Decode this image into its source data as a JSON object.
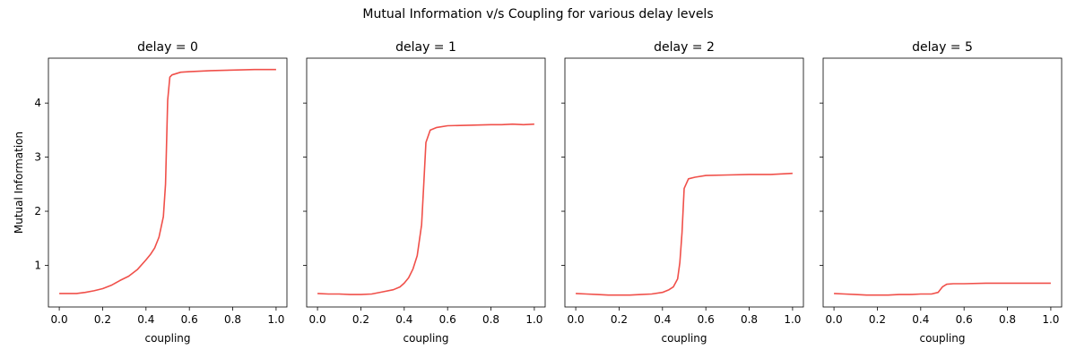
{
  "chart_data": {
    "title": "Mutual Information v/s Coupling for various delay levels",
    "type": "line",
    "ylabel": "Mutual Information",
    "xlim": [
      -0.05,
      1.05
    ],
    "ylim": [
      0.23,
      4.83
    ],
    "x_ticks": [
      0.0,
      0.2,
      0.4,
      0.6,
      0.8,
      1.0
    ],
    "x_tick_labels": [
      "0.0",
      "0.2",
      "0.4",
      "0.6",
      "0.8",
      "1.0"
    ],
    "y_ticks": [
      1,
      2,
      3,
      4
    ],
    "y_tick_labels": [
      "1",
      "2",
      "3",
      "4"
    ],
    "line_color": "#f0504a",
    "panels": [
      {
        "title": "delay = 0",
        "xlabel": "coupling",
        "x": [
          0.0,
          0.04,
          0.08,
          0.12,
          0.16,
          0.2,
          0.24,
          0.28,
          0.32,
          0.36,
          0.4,
          0.42,
          0.44,
          0.46,
          0.48,
          0.49,
          0.5,
          0.51,
          0.52,
          0.56,
          0.6,
          0.7,
          0.8,
          0.9,
          1.0
        ],
        "y": [
          0.48,
          0.48,
          0.48,
          0.5,
          0.53,
          0.57,
          0.63,
          0.72,
          0.8,
          0.92,
          1.1,
          1.2,
          1.32,
          1.52,
          1.9,
          2.5,
          4.05,
          4.48,
          4.52,
          4.57,
          4.58,
          4.6,
          4.61,
          4.62,
          4.62
        ]
      },
      {
        "title": "delay = 1",
        "xlabel": "coupling",
        "x": [
          0.0,
          0.05,
          0.1,
          0.15,
          0.2,
          0.25,
          0.3,
          0.35,
          0.38,
          0.4,
          0.42,
          0.44,
          0.46,
          0.48,
          0.49,
          0.5,
          0.52,
          0.55,
          0.6,
          0.7,
          0.8,
          0.85,
          0.9,
          0.95,
          1.0
        ],
        "y": [
          0.48,
          0.47,
          0.47,
          0.46,
          0.46,
          0.47,
          0.51,
          0.55,
          0.6,
          0.67,
          0.77,
          0.93,
          1.18,
          1.75,
          2.5,
          3.27,
          3.5,
          3.55,
          3.58,
          3.59,
          3.6,
          3.6,
          3.61,
          3.6,
          3.61
        ]
      },
      {
        "title": "delay = 2",
        "xlabel": "coupling",
        "x": [
          0.0,
          0.05,
          0.1,
          0.15,
          0.2,
          0.25,
          0.3,
          0.35,
          0.4,
          0.43,
          0.45,
          0.47,
          0.48,
          0.49,
          0.5,
          0.52,
          0.55,
          0.6,
          0.7,
          0.8,
          0.9,
          1.0
        ],
        "y": [
          0.48,
          0.47,
          0.46,
          0.45,
          0.45,
          0.45,
          0.46,
          0.47,
          0.5,
          0.55,
          0.6,
          0.75,
          1.05,
          1.6,
          2.42,
          2.6,
          2.63,
          2.66,
          2.67,
          2.68,
          2.68,
          2.7
        ]
      },
      {
        "title": "delay = 5",
        "xlabel": "coupling",
        "x": [
          0.0,
          0.05,
          0.1,
          0.15,
          0.2,
          0.25,
          0.3,
          0.35,
          0.4,
          0.45,
          0.48,
          0.5,
          0.52,
          0.55,
          0.6,
          0.7,
          0.8,
          0.9,
          1.0
        ],
        "y": [
          0.48,
          0.47,
          0.46,
          0.45,
          0.45,
          0.45,
          0.46,
          0.46,
          0.47,
          0.47,
          0.5,
          0.6,
          0.65,
          0.66,
          0.66,
          0.67,
          0.67,
          0.67,
          0.67
        ]
      }
    ]
  }
}
